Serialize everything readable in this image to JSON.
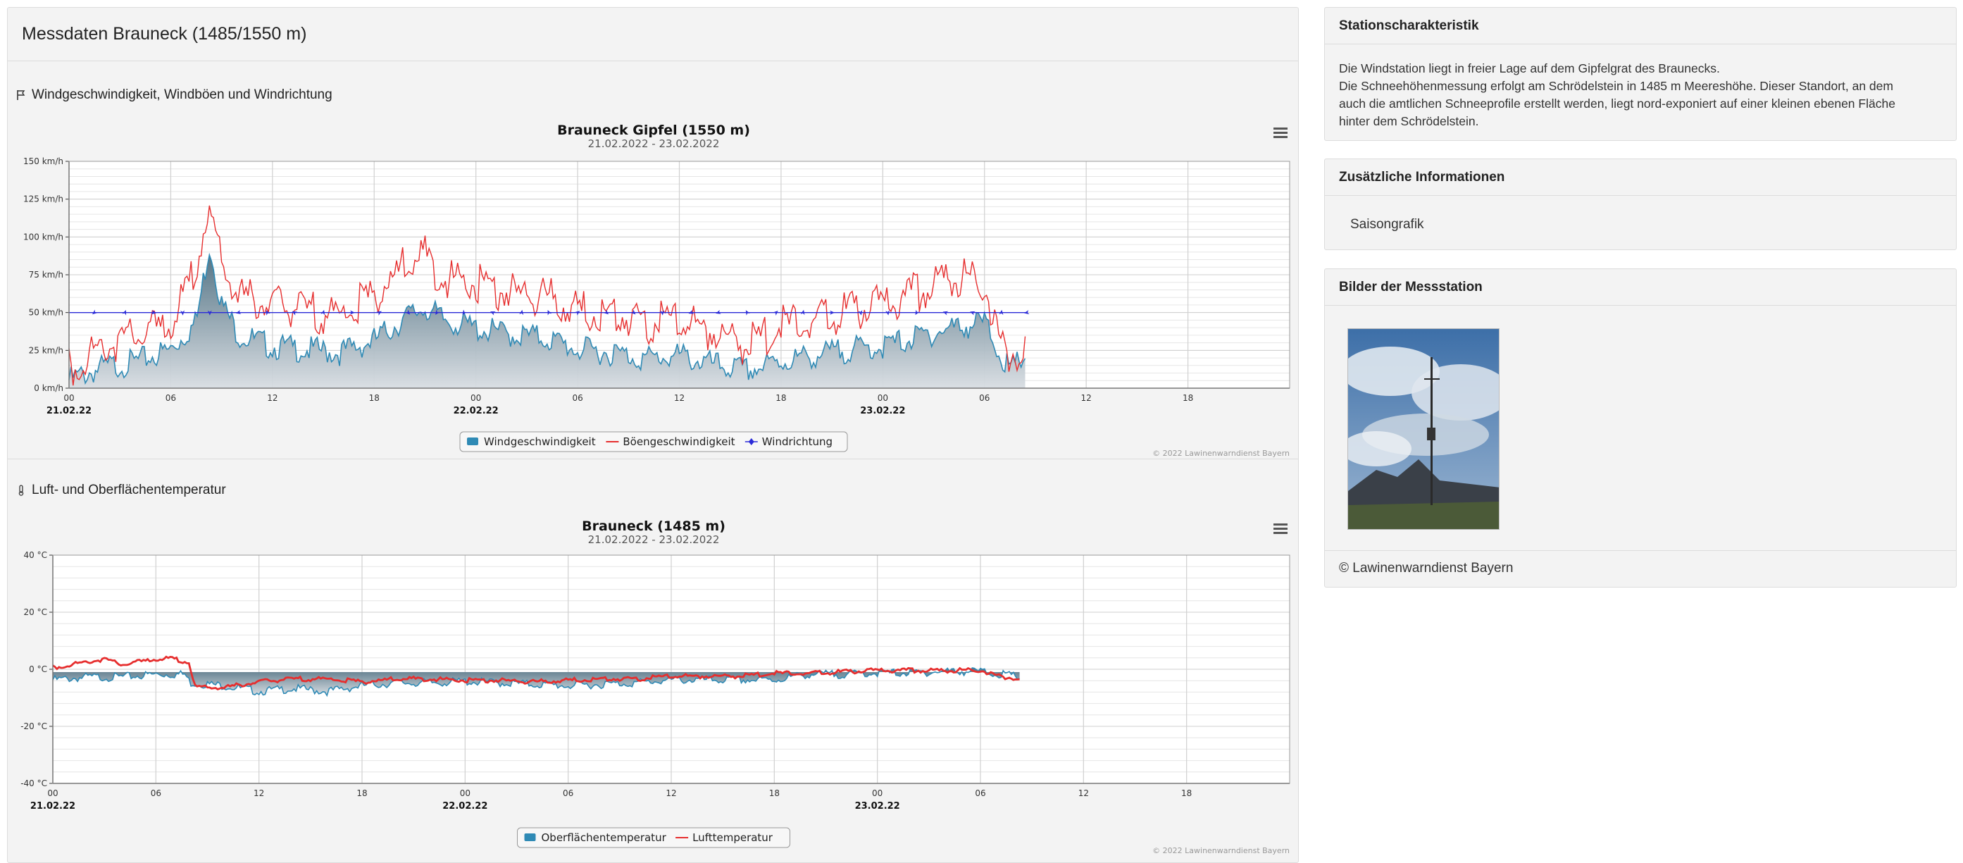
{
  "page": {
    "title": "Messdaten Brauneck (1485/1550 m)"
  },
  "sections": {
    "wind": {
      "title": "Windgeschwindigkeit, Windböen und Windrichtung"
    },
    "temp": {
      "title": "Luft- und Oberflächentemperatur"
    }
  },
  "chart_data": [
    {
      "type": "area",
      "title": "Brauneck Gipfel (1550 m)",
      "subtitle": "21.02.2022 - 23.02.2022",
      "y_ticks": [
        "150 km/h",
        "125 km/h",
        "100 km/h",
        "75 km/h",
        "50 km/h",
        "25 km/h",
        "0 km/h"
      ],
      "ylim": [
        0,
        150
      ],
      "x_ticks": [
        "00",
        "06",
        "12",
        "18",
        "00",
        "06",
        "12",
        "18",
        "00",
        "06",
        "12",
        "18"
      ],
      "x_dates": [
        "21.02.22",
        "22.02.22",
        "23.02.22"
      ],
      "x_hours_range": [
        0,
        72
      ],
      "data_end_hour": 56.5,
      "series": [
        {
          "name": "Windgeschwindigkeit",
          "kind": "area",
          "color": "#2f8ab5",
          "x": [
            0,
            2,
            4,
            6,
            7.5,
            8.3,
            9,
            10,
            12,
            14,
            16,
            18,
            20,
            21,
            22,
            24,
            26,
            28,
            30,
            32,
            34,
            36,
            38,
            40,
            42,
            44,
            46,
            48,
            50,
            52,
            54,
            55.5,
            56.5
          ],
          "values": [
            10,
            18,
            22,
            30,
            48,
            100,
            60,
            40,
            32,
            30,
            28,
            36,
            52,
            58,
            50,
            44,
            40,
            38,
            30,
            28,
            24,
            26,
            20,
            16,
            22,
            26,
            30,
            32,
            38,
            44,
            48,
            15,
            28
          ]
        },
        {
          "name": "Böengeschwindigkeit",
          "kind": "line",
          "color": "#e62e2e",
          "x": [
            0,
            2,
            4,
            6,
            7,
            8.2,
            9,
            10,
            12,
            14,
            16,
            18,
            20,
            21,
            22,
            24,
            26,
            28,
            30,
            32,
            34,
            36,
            38,
            40,
            42,
            44,
            46,
            48,
            50,
            52,
            54,
            55,
            56.5
          ],
          "values": [
            20,
            35,
            42,
            50,
            70,
            122,
            90,
            68,
            62,
            58,
            55,
            68,
            90,
            94,
            80,
            76,
            70,
            68,
            58,
            56,
            50,
            52,
            45,
            35,
            48,
            52,
            58,
            62,
            70,
            82,
            75,
            32,
            28
          ]
        },
        {
          "name": "Windrichtung",
          "kind": "line-markers",
          "color": "#2b2bd8",
          "x": [
            1.5,
            3.3,
            5,
            6.7,
            8.3,
            10,
            11.7,
            13.3,
            15,
            16.7,
            18.3,
            20,
            21.7,
            23.3,
            25,
            26.7,
            28.3,
            30,
            31.7,
            33.3,
            35,
            36.7,
            38.3,
            40,
            41.7,
            43.3,
            45,
            46.7,
            48.3,
            50,
            51.7,
            53.3,
            55,
            56.5
          ],
          "values": [
            50,
            50,
            50,
            50,
            50,
            50,
            50,
            50,
            50,
            50,
            50,
            50,
            50,
            50,
            50,
            50,
            50,
            50,
            50,
            50,
            50,
            50,
            50,
            50,
            50,
            50,
            50,
            50,
            50,
            50,
            50,
            50,
            50,
            50
          ]
        }
      ],
      "legend": [
        "Windgeschwindigkeit",
        "Böengeschwindigkeit",
        "Windrichtung"
      ],
      "legend_position": "bottom-center",
      "credit": "© 2022 Lawinenwarndienst Bayern"
    },
    {
      "type": "area",
      "title": "Brauneck (1485 m)",
      "subtitle": "21.02.2022 - 23.02.2022",
      "y_ticks": [
        "40 °C",
        "20 °C",
        "0 °C",
        "-20 °C",
        "-40 °C"
      ],
      "ylim": [
        -40,
        40
      ],
      "x_ticks": [
        "00",
        "06",
        "12",
        "18",
        "00",
        "06",
        "12",
        "18",
        "00",
        "06",
        "12",
        "18"
      ],
      "x_dates": [
        "21.02.22",
        "22.02.22",
        "23.02.22"
      ],
      "x_hours_range": [
        0,
        72
      ],
      "data_end_hour": 56.3,
      "series": [
        {
          "name": "Oberflächentemperatur",
          "kind": "area",
          "color": "#2f8ab5",
          "x": [
            0,
            2,
            4,
            6,
            7.7,
            8,
            10,
            12,
            14,
            16,
            18,
            20,
            22,
            24,
            26,
            28,
            30,
            32,
            34,
            36,
            38,
            40,
            42,
            44,
            46,
            48,
            50,
            52,
            54,
            56.3
          ],
          "values": [
            -3,
            -2,
            -2,
            -1,
            -1,
            -4,
            -5,
            -7,
            -6,
            -7,
            -5,
            -4,
            -4,
            -3.5,
            -4,
            -4.5,
            -5,
            -4.5,
            -4,
            -3,
            -3,
            -3,
            -3,
            -1,
            -1,
            -0.5,
            -0.5,
            0,
            0,
            -2
          ]
        },
        {
          "name": "Lufttemperatur",
          "kind": "line",
          "color": "#e62e2e",
          "x": [
            0,
            1,
            2,
            3,
            4,
            5,
            6,
            7,
            7.9,
            8.3,
            10,
            12,
            14,
            16,
            18,
            20,
            22,
            24,
            26,
            28,
            30,
            32,
            34,
            36,
            38,
            40,
            42,
            44,
            46,
            48,
            50,
            52,
            54,
            55,
            56.3
          ],
          "values": [
            1,
            2,
            3,
            4,
            2,
            3,
            4,
            4,
            3,
            -6,
            -6,
            -4,
            -3,
            -3,
            -4,
            -3,
            -3,
            -3.5,
            -3.5,
            -4,
            -3.5,
            -3,
            -3,
            -2,
            -2,
            -2,
            -1,
            -1,
            -0.5,
            0,
            0,
            0,
            0,
            -2,
            -3
          ]
        }
      ],
      "legend": [
        "Oberflächentemperatur",
        "Lufttemperatur"
      ],
      "legend_position": "bottom-center",
      "credit": "© 2022 Lawinenwarndienst Bayern"
    }
  ],
  "sidebar": {
    "station": {
      "title": "Stationscharakteristik",
      "lines": [
        "Die Windstation liegt in freier Lage auf dem Gipfelgrat des Braunecks.",
        "Die Schneehöhenmessung erfolgt am Schrödelstein in 1485 m Meereshöhe. Dieser Standort, an dem",
        "auch die amtlichen Schneeprofile erstellt werden, liegt nord-exponiert auf einer kleinen ebenen Fläche",
        "hinter dem Schrödelstein."
      ]
    },
    "info": {
      "title": "Zusätzliche Informationen",
      "link": "Saisongrafik"
    },
    "photos": {
      "title": "Bilder der Messstation",
      "footer": "© Lawinenwarndienst Bayern"
    }
  },
  "colors": {
    "panel_bg": "#f3f3f3",
    "border": "#dcdcdc",
    "wind_fill": "#2f8ab5",
    "gust_line": "#e62e2e",
    "direction_line": "#2b2bd8"
  },
  "icons": {
    "wind_section": "flag-icon",
    "temp_section": "thermometer-icon",
    "chart_menu": "hamburger-menu-icon"
  }
}
